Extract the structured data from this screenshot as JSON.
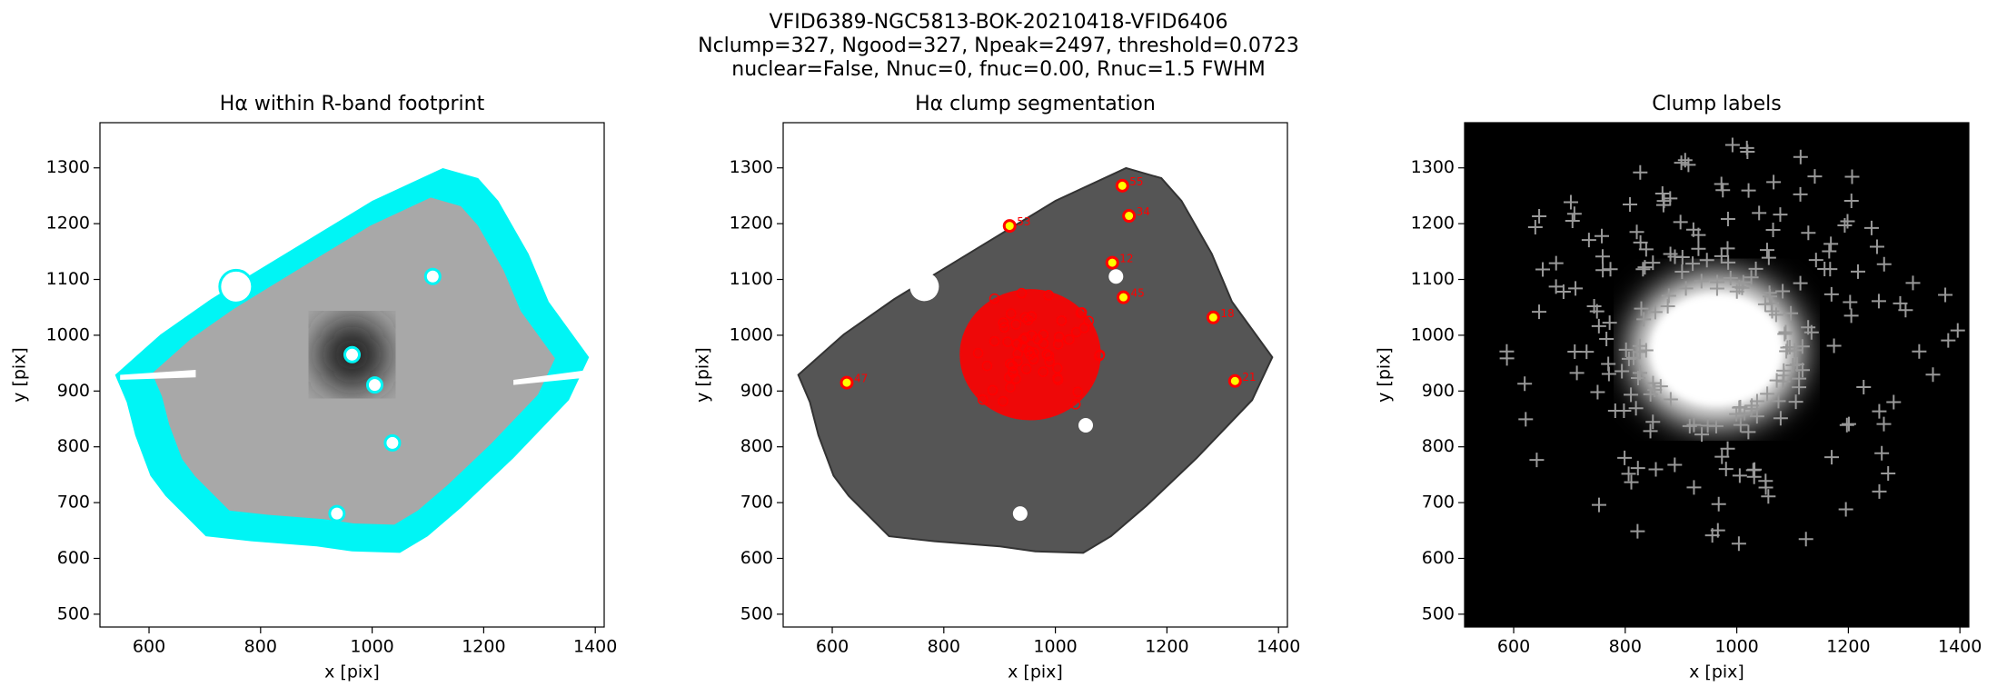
{
  "suptitle": [
    "VFID6389-NGC5813-BOK-20210418-VFID6406",
    "Nclump=327, Ngood=327, Npeak=2497, threshold=0.0723",
    "nuclear=False, Nnuc=0, fnuc=0.00, Rnuc=1.5 FWHM"
  ],
  "chart_data": [
    {
      "type": "image",
      "title": "Hα within R-band footprint",
      "xlabel": "x [pix]",
      "ylabel": "y [pix]",
      "xlim": [
        512,
        1416
      ],
      "ylim": [
        477,
        1381
      ],
      "xticks": [
        600,
        800,
        1000,
        1200,
        1400
      ],
      "yticks": [
        500,
        600,
        700,
        800,
        900,
        1000,
        1100,
        1200,
        1300
      ]
    },
    {
      "type": "image",
      "title": "Hα clump segmentation",
      "xlabel": "x [pix]",
      "ylabel": "y [pix]",
      "xlim": [
        512,
        1416
      ],
      "ylim": [
        477,
        1381
      ],
      "xticks": [
        600,
        800,
        1000,
        1200,
        1400
      ],
      "yticks": [
        500,
        600,
        700,
        800,
        900,
        1000,
        1100,
        1200,
        1300
      ],
      "annotations": [
        {
          "text": "55",
          "x": 1120,
          "y": 1268
        },
        {
          "text": "34",
          "x": 1132,
          "y": 1214
        },
        {
          "text": "53",
          "x": 918,
          "y": 1196
        },
        {
          "text": "12",
          "x": 1102,
          "y": 1130
        },
        {
          "text": "45",
          "x": 1122,
          "y": 1068
        },
        {
          "text": "18",
          "x": 1283,
          "y": 1032
        },
        {
          "text": "47",
          "x": 626,
          "y": 915
        },
        {
          "text": "21",
          "x": 1322,
          "y": 918
        }
      ]
    },
    {
      "type": "image",
      "title": "Clump labels",
      "xlabel": "x [pix]",
      "ylabel": "y [pix]",
      "xlim": [
        512,
        1416
      ],
      "ylim": [
        477,
        1381
      ],
      "xticks": [
        600,
        800,
        1000,
        1200,
        1400
      ],
      "yticks": [
        500,
        600,
        700,
        800,
        900,
        1000,
        1100,
        1200,
        1300
      ]
    }
  ]
}
